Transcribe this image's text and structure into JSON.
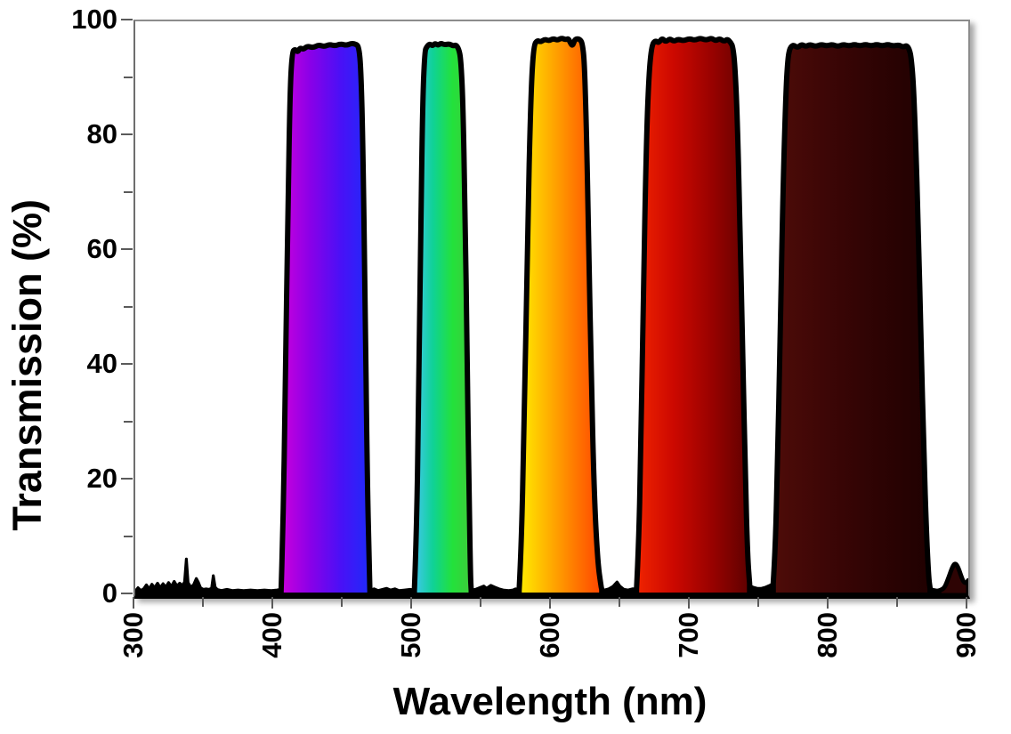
{
  "chart_data": {
    "type": "area",
    "title": "",
    "xlabel": "Wavelength (nm)",
    "ylabel": "Transmission (%)",
    "xlim": [
      300,
      900
    ],
    "ylim": [
      0,
      100
    ],
    "grid": false,
    "legend": "none",
    "x_major_ticks": [
      300,
      400,
      500,
      600,
      700,
      800,
      900
    ],
    "x_minor_ticks": [
      350,
      450,
      550,
      650,
      750,
      850
    ],
    "y_major_ticks": [
      0,
      20,
      40,
      60,
      80,
      100
    ],
    "y_minor_ticks": [
      10,
      30,
      50,
      70,
      90
    ],
    "outline_color": "#000000",
    "outline_width": 6,
    "noise_color": "#000000",
    "noise_stroke_width": 3.2,
    "description": "Five-passband optical filter transmission spectrum; each passband filled with the spectral color of its wavelength range",
    "bands": [
      {
        "name": "violet-blue passband",
        "passband_nm": [
          405,
          469
        ],
        "peak_transmission_pct": 96,
        "gradient": [
          "#CB00DC",
          "#8A00E8",
          "#4A10F6",
          "#1E2BFA"
        ],
        "outline": [
          [
            405,
            0.5
          ],
          [
            406.5,
            12
          ],
          [
            408,
            35
          ],
          [
            410,
            68
          ],
          [
            411.5,
            88
          ],
          [
            413,
            94.6
          ],
          [
            415,
            95.2
          ],
          [
            417,
            94.6
          ],
          [
            418.5,
            95.4
          ],
          [
            421,
            95.1
          ],
          [
            424,
            95.7
          ],
          [
            428,
            95.4
          ],
          [
            432,
            95.9
          ],
          [
            436,
            95.6
          ],
          [
            440,
            96.0
          ],
          [
            444,
            95.7
          ],
          [
            448,
            96.1
          ],
          [
            452,
            95.8
          ],
          [
            456,
            96.2
          ],
          [
            459,
            96.0
          ],
          [
            461,
            95.6
          ],
          [
            462.5,
            92
          ],
          [
            464,
            78
          ],
          [
            465.5,
            52
          ],
          [
            467,
            22
          ],
          [
            468.5,
            5
          ],
          [
            469,
            0.8
          ]
        ]
      },
      {
        "name": "green passband",
        "passband_nm": [
          501,
          542
        ],
        "peak_transmission_pct": 96,
        "gradient": [
          "#41C7EE",
          "#0FD295",
          "#23E13B",
          "#3FCB3B"
        ],
        "outline": [
          [
            501,
            0.8
          ],
          [
            502.5,
            10
          ],
          [
            504,
            32
          ],
          [
            505.5,
            62
          ],
          [
            507,
            86
          ],
          [
            508.5,
            94.8
          ],
          [
            510,
            95.6
          ],
          [
            512,
            96.1
          ],
          [
            514,
            95.7
          ],
          [
            516,
            96.2
          ],
          [
            518,
            95.8
          ],
          [
            520,
            96.2
          ],
          [
            523,
            95.9
          ],
          [
            526,
            96.1
          ],
          [
            529,
            95.7
          ],
          [
            531,
            95.9
          ],
          [
            533,
            95.2
          ],
          [
            534.5,
            93.5
          ],
          [
            536,
            86
          ],
          [
            537.5,
            68
          ],
          [
            539,
            42
          ],
          [
            540.5,
            16
          ],
          [
            541.5,
            3
          ],
          [
            542,
            0.8
          ]
        ]
      },
      {
        "name": "yellow-orange passband",
        "passband_nm": [
          576,
          636
        ],
        "peak_transmission_pct": 97,
        "gradient": [
          "#FFEE00",
          "#FFB400",
          "#FF7A00",
          "#FF4400"
        ],
        "outline": [
          [
            576.5,
            0.8
          ],
          [
            578,
            8
          ],
          [
            580,
            28
          ],
          [
            582.5,
            62
          ],
          [
            585,
            88
          ],
          [
            587,
            95.8
          ],
          [
            589.5,
            96.7
          ],
          [
            592,
            96.4
          ],
          [
            595,
            96.9
          ],
          [
            598,
            96.6
          ],
          [
            601,
            97.0
          ],
          [
            604,
            96.7
          ],
          [
            607,
            97.1
          ],
          [
            610,
            96.8
          ],
          [
            612,
            97.0
          ],
          [
            613.5,
            96.2
          ],
          [
            615,
            95.7
          ],
          [
            616.5,
            96.8
          ],
          [
            618.5,
            97.0
          ],
          [
            620.5,
            96.8
          ],
          [
            622,
            96.2
          ],
          [
            623.5,
            93
          ],
          [
            625,
            81
          ],
          [
            626.5,
            62
          ],
          [
            628.5,
            38
          ],
          [
            630.5,
            18
          ],
          [
            633,
            6
          ],
          [
            635.5,
            1.5
          ],
          [
            636,
            1.0
          ]
        ]
      },
      {
        "name": "red passband",
        "passband_nm": [
          661,
          742
        ],
        "peak_transmission_pct": 97,
        "gradient": [
          "#F02400",
          "#CC0800",
          "#980200",
          "#5E0100"
        ],
        "outline": [
          [
            661,
            1.0
          ],
          [
            662.5,
            8
          ],
          [
            664,
            24
          ],
          [
            666,
            52
          ],
          [
            668,
            78
          ],
          [
            670,
            91
          ],
          [
            672,
            95.8
          ],
          [
            674.5,
            96.7
          ],
          [
            677,
            96.2
          ],
          [
            679.5,
            97.1
          ],
          [
            682,
            96.4
          ],
          [
            685,
            97.0
          ],
          [
            688,
            96.5
          ],
          [
            691,
            96.9
          ],
          [
            695,
            96.6
          ],
          [
            699,
            97.0
          ],
          [
            703,
            96.7
          ],
          [
            707,
            97.1
          ],
          [
            711,
            96.7
          ],
          [
            715,
            97.1
          ],
          [
            718,
            96.6
          ],
          [
            721,
            97.0
          ],
          [
            724,
            96.5
          ],
          [
            726.5,
            96.9
          ],
          [
            729,
            96.3
          ],
          [
            730.5,
            95.5
          ],
          [
            732,
            92
          ],
          [
            733.5,
            84
          ],
          [
            735.5,
            66
          ],
          [
            737.5,
            42
          ],
          [
            739.5,
            20
          ],
          [
            741,
            7
          ],
          [
            742.5,
            2
          ]
        ]
      },
      {
        "name": "deep-red near-IR passband",
        "passband_nm": [
          760,
          872
        ],
        "peak_transmission_pct": 96,
        "gradient": [
          "#4E0C08",
          "#3D0606",
          "#2D0303",
          "#200101"
        ],
        "outline": [
          [
            759.5,
            2
          ],
          [
            761,
            8
          ],
          [
            762.5,
            22
          ],
          [
            764.5,
            45
          ],
          [
            766.5,
            70
          ],
          [
            768.5,
            87
          ],
          [
            770,
            93.5
          ],
          [
            771.5,
            95.4
          ],
          [
            774,
            95.9
          ],
          [
            777,
            95.4
          ],
          [
            780,
            96.0
          ],
          [
            783,
            95.6
          ],
          [
            786,
            96.0
          ],
          [
            790,
            95.6
          ],
          [
            794,
            96.0
          ],
          [
            798,
            95.7
          ],
          [
            802,
            96.0
          ],
          [
            806,
            95.6
          ],
          [
            810,
            96.0
          ],
          [
            814,
            95.7
          ],
          [
            818,
            96.0
          ],
          [
            822,
            95.7
          ],
          [
            826,
            96.0
          ],
          [
            830,
            95.7
          ],
          [
            834,
            96.0
          ],
          [
            838,
            95.7
          ],
          [
            842,
            96.0
          ],
          [
            846,
            95.7
          ],
          [
            850,
            95.9
          ],
          [
            853,
            95.5
          ],
          [
            855.5,
            95.8
          ],
          [
            857.5,
            95.2
          ],
          [
            859,
            93.5
          ],
          [
            860.5,
            89
          ],
          [
            862,
            80
          ],
          [
            864,
            64
          ],
          [
            866,
            44
          ],
          [
            868,
            25
          ],
          [
            870,
            10
          ],
          [
            871.5,
            3
          ],
          [
            872.5,
            1.2
          ]
        ]
      }
    ],
    "extra_peak": {
      "name": "small near-IR leak peak",
      "fill": "#2E0404",
      "stroke_width": 5,
      "outline": [
        [
          879,
          0.8
        ],
        [
          881.5,
          1.0
        ],
        [
          883.5,
          1.6
        ],
        [
          886,
          3.2
        ],
        [
          888.5,
          4.9
        ],
        [
          890.5,
          5.6
        ],
        [
          892.5,
          5.0
        ],
        [
          894.5,
          3.6
        ],
        [
          896.5,
          2.3
        ],
        [
          898.5,
          2.1
        ],
        [
          900,
          2.6
        ]
      ]
    },
    "noise_floor_segments": [
      [
        [
          300,
          0.7
        ],
        [
          302,
          1.3
        ],
        [
          304,
          0.8
        ],
        [
          306,
          1.1
        ],
        [
          308,
          1.8
        ],
        [
          310,
          1.1
        ],
        [
          312,
          1.9
        ],
        [
          314,
          1.3
        ],
        [
          316,
          2.1
        ],
        [
          318,
          1.3
        ],
        [
          320,
          2.0
        ],
        [
          322,
          1.4
        ],
        [
          324,
          2.2
        ],
        [
          326,
          1.5
        ],
        [
          328,
          2.4
        ],
        [
          330,
          1.6
        ],
        [
          332,
          2.1
        ],
        [
          334,
          1.7
        ],
        [
          335.5,
          2.3
        ],
        [
          336.8,
          6.3
        ],
        [
          338,
          2.2
        ],
        [
          340,
          1.4
        ],
        [
          342,
          1.8
        ],
        [
          344,
          2.9
        ],
        [
          345.5,
          2.2
        ],
        [
          347,
          1.3
        ],
        [
          349,
          1.0
        ],
        [
          351,
          1.1
        ],
        [
          353,
          1.0
        ],
        [
          355,
          1.2
        ],
        [
          356.2,
          3.4
        ],
        [
          357.5,
          1.4
        ],
        [
          359,
          1.0
        ],
        [
          362,
          0.8
        ],
        [
          366,
          1.0
        ],
        [
          370,
          0.8
        ],
        [
          374,
          0.9
        ],
        [
          378,
          0.8
        ],
        [
          383,
          0.9
        ],
        [
          388,
          0.8
        ],
        [
          393,
          0.9
        ],
        [
          398,
          0.8
        ],
        [
          402,
          0.9
        ],
        [
          405,
          1.0
        ]
      ],
      [
        [
          469,
          0.8
        ],
        [
          472,
          1.1
        ],
        [
          475,
          0.8
        ],
        [
          478,
          1.0
        ],
        [
          481,
          1.2
        ],
        [
          484,
          0.9
        ],
        [
          487,
          1.1
        ],
        [
          490,
          0.8
        ],
        [
          494,
          0.9
        ],
        [
          498,
          1.0
        ],
        [
          501,
          0.9
        ]
      ],
      [
        [
          542,
          0.9
        ],
        [
          545,
          1.0
        ],
        [
          548,
          1.3
        ],
        [
          551,
          1.6
        ],
        [
          553,
          1.2
        ],
        [
          556,
          1.7
        ],
        [
          559,
          1.4
        ],
        [
          562,
          1.1
        ],
        [
          565,
          0.9
        ],
        [
          569,
          0.8
        ],
        [
          572,
          0.9
        ],
        [
          574,
          1.1
        ],
        [
          576.5,
          1.0
        ]
      ],
      [
        [
          636,
          1.0
        ],
        [
          638,
          0.9
        ],
        [
          641,
          1.1
        ],
        [
          644,
          1.5
        ],
        [
          647,
          2.3
        ],
        [
          649,
          1.6
        ],
        [
          652,
          1.0
        ],
        [
          655,
          0.9
        ],
        [
          658,
          1.1
        ],
        [
          661,
          1.1
        ]
      ],
      [
        [
          742,
          1.8
        ],
        [
          745,
          1.4
        ],
        [
          748,
          1.2
        ],
        [
          751,
          1.2
        ],
        [
          754,
          1.4
        ],
        [
          757,
          1.7
        ],
        [
          759.5,
          2.0
        ]
      ],
      [
        [
          872,
          1.3
        ],
        [
          874.5,
          1.0
        ],
        [
          877,
          0.9
        ],
        [
          879.5,
          0.9
        ],
        [
          881,
          1.0
        ]
      ]
    ]
  }
}
